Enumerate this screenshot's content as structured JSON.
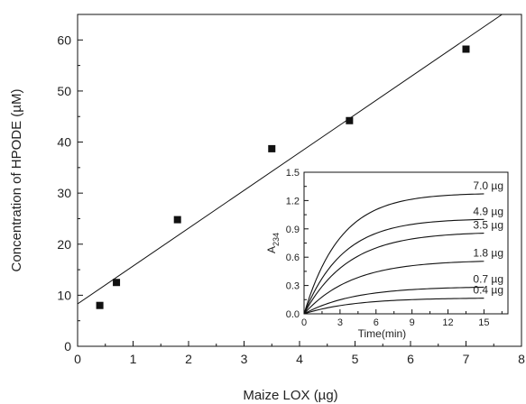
{
  "chart_data": [
    {
      "type": "scatter",
      "xlabel": "Maize  LOX (µg)",
      "ylabel": "Concentration of HPODE (µM)",
      "xlim": [
        0,
        8
      ],
      "ylim": [
        0,
        65
      ],
      "xticks": [
        "0",
        "1",
        "2",
        "3",
        "4",
        "5",
        "6",
        "7",
        "8"
      ],
      "yticks": [
        "0",
        "10",
        "20",
        "30",
        "40",
        "50",
        "60"
      ],
      "grid": false,
      "marker_color": "#111111",
      "points": [
        {
          "x": 0.4,
          "y": 8.0
        },
        {
          "x": 0.7,
          "y": 12.5
        },
        {
          "x": 1.8,
          "y": 24.8
        },
        {
          "x": 3.5,
          "y": 38.7
        },
        {
          "x": 4.9,
          "y": 44.2
        },
        {
          "x": 7.0,
          "y": 58.2
        }
      ],
      "fit_line": {
        "x": [
          0,
          7.65
        ],
        "y": [
          8.3,
          65
        ]
      }
    },
    {
      "type": "line",
      "xlabel": "Time(min)",
      "ylabel": "A",
      "ylabel_sub": "234",
      "xlim": [
        0,
        17
      ],
      "ylim": [
        0,
        1.5
      ],
      "xticks": [
        "0",
        "3",
        "6",
        "9",
        "12",
        "15"
      ],
      "yticks": [
        "0.0",
        "0.3",
        "0.6",
        "0.9",
        "1.2",
        "1.5"
      ],
      "line_color": "#111111",
      "series": [
        {
          "name": "7.0 µg",
          "plateau": 1.28,
          "rate": 0.33
        },
        {
          "name": "4.9 µg",
          "plateau": 1.01,
          "rate": 0.31
        },
        {
          "name": "3.5 µg",
          "plateau": 0.87,
          "rate": 0.27
        },
        {
          "name": "1.8 µg",
          "plateau": 0.57,
          "rate": 0.25
        },
        {
          "name": "0.7 µg",
          "plateau": 0.29,
          "rate": 0.24
        },
        {
          "name": "0.4 µg",
          "plateau": 0.17,
          "rate": 0.24
        }
      ],
      "x_end": 15
    }
  ]
}
